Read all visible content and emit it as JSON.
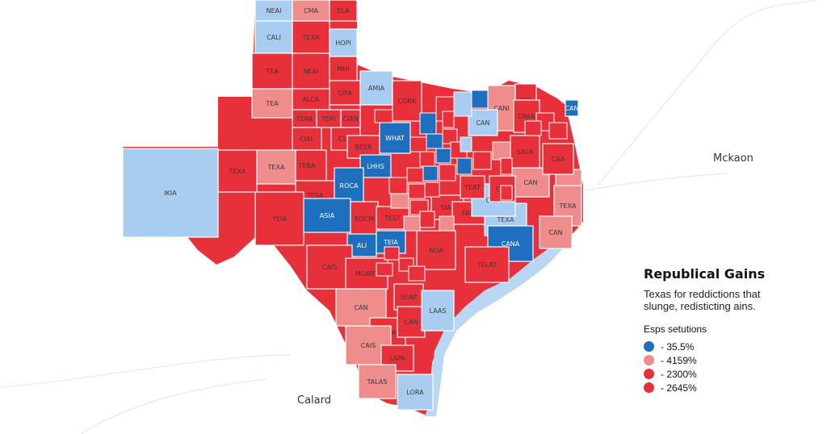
{
  "colors": {
    "dark_blue": "#1f6fbf",
    "light_blue": "#a9cdf0",
    "pink": "#ef8c8c",
    "red": "#e8303a",
    "border": "#ffffff",
    "coast_blue": "#b9d7f2"
  },
  "place_labels": {
    "mckaon": "Mckaon",
    "calard": "Calard"
  },
  "legend": {
    "title": "Republical Gains",
    "subtitle_line1": "Texas for reddictions that",
    "subtitle_line2": "slunge, redisticting ains.",
    "heading": "Esps setutions",
    "items": [
      {
        "label": "- 35.5%",
        "color": "dark_blue"
      },
      {
        "label": "- 4159%",
        "color": "pink"
      },
      {
        "label": "- 2300%",
        "color": "red"
      },
      {
        "label": "- 2645%",
        "color": "red"
      }
    ]
  },
  "counties": [
    {
      "label": "NEAI",
      "fill": "light_blue"
    },
    {
      "label": "CMA",
      "fill": "pink"
    },
    {
      "label": "ELA",
      "fill": "red"
    },
    {
      "label": "CALI",
      "fill": "light_blue"
    },
    {
      "label": "TEXA",
      "fill": "red"
    },
    {
      "label": "HOPI",
      "fill": "light_blue"
    },
    {
      "label": "TEA",
      "fill": "red"
    },
    {
      "label": "NEAI",
      "fill": "red"
    },
    {
      "label": "MHI",
      "fill": "red"
    },
    {
      "label": "CIPA",
      "fill": "red"
    },
    {
      "label": "AMIA",
      "fill": "light_blue"
    },
    {
      "label": "ALCA",
      "fill": "red"
    },
    {
      "label": "CIDA",
      "fill": "red"
    },
    {
      "label": "TEA",
      "fill": "pink"
    },
    {
      "label": "TERA",
      "fill": "red"
    },
    {
      "label": "TEPI",
      "fill": "red"
    },
    {
      "label": "CIAN",
      "fill": "red"
    },
    {
      "label": "CORK",
      "fill": "red"
    },
    {
      "label": "CANI",
      "fill": "pink"
    },
    {
      "label": "CIAI",
      "fill": "red"
    },
    {
      "label": "CIAL",
      "fill": "red"
    },
    {
      "label": "CIAT",
      "fill": "red"
    },
    {
      "label": "TEBA",
      "fill": "red"
    },
    {
      "label": "BEER",
      "fill": "red"
    },
    {
      "label": "WHAT",
      "fill": "dark_blue"
    },
    {
      "label": "CAN",
      "fill": "light_blue"
    },
    {
      "label": "TEXA",
      "fill": "red"
    },
    {
      "label": "TEXA",
      "fill": "pink"
    },
    {
      "label": "LHHS",
      "fill": "dark_blue"
    },
    {
      "label": "TESA",
      "fill": "red"
    },
    {
      "label": "ROCA",
      "fill": "dark_blue"
    },
    {
      "label": "IKIA",
      "fill": "light_blue"
    },
    {
      "label": "YEIA",
      "fill": "red"
    },
    {
      "label": "ASIA",
      "fill": "dark_blue"
    },
    {
      "label": "ROCM",
      "fill": "red"
    },
    {
      "label": "TEST",
      "fill": "red"
    },
    {
      "label": "SIAL",
      "fill": "red"
    },
    {
      "label": "ALI",
      "fill": "dark_blue"
    },
    {
      "label": "TEIA",
      "fill": "dark_blue"
    },
    {
      "label": "CAIS",
      "fill": "red"
    },
    {
      "label": "NOA",
      "fill": "red"
    },
    {
      "label": "MOART",
      "fill": "red"
    },
    {
      "label": "SEAP",
      "fill": "red"
    },
    {
      "label": "CAN",
      "fill": "pink"
    },
    {
      "label": "TEXA",
      "fill": "red"
    },
    {
      "label": "CAN",
      "fill": "red"
    },
    {
      "label": "CAIS",
      "fill": "pink"
    },
    {
      "label": "LAPA",
      "fill": "red"
    },
    {
      "label": "LAAS",
      "fill": "light_blue"
    },
    {
      "label": "LORA",
      "fill": "light_blue"
    },
    {
      "label": "TALAS",
      "fill": "pink"
    },
    {
      "label": "TEXA",
      "fill": "light_blue"
    },
    {
      "label": "CANA",
      "fill": "dark_blue"
    },
    {
      "label": "TELAT",
      "fill": "red"
    },
    {
      "label": "FAIT",
      "fill": "red"
    },
    {
      "label": "SAT",
      "fill": "pink"
    },
    {
      "label": "TEXA",
      "fill": "pink"
    },
    {
      "label": "CRAN",
      "fill": "red"
    },
    {
      "label": "CAN",
      "fill": "pink"
    },
    {
      "label": "CAA",
      "fill": "red"
    },
    {
      "label": "CAIA",
      "fill": "light_blue"
    },
    {
      "label": "CAL",
      "fill": "red"
    },
    {
      "label": "TEAT",
      "fill": "red"
    },
    {
      "label": "SALA",
      "fill": "red"
    },
    {
      "label": "CAN",
      "fill": "pink"
    },
    {
      "label": "CAN",
      "fill": "dark_blue"
    },
    {
      "label": "NAS",
      "fill": "light_blue"
    },
    {
      "label": "CARAN",
      "fill": "red"
    }
  ]
}
